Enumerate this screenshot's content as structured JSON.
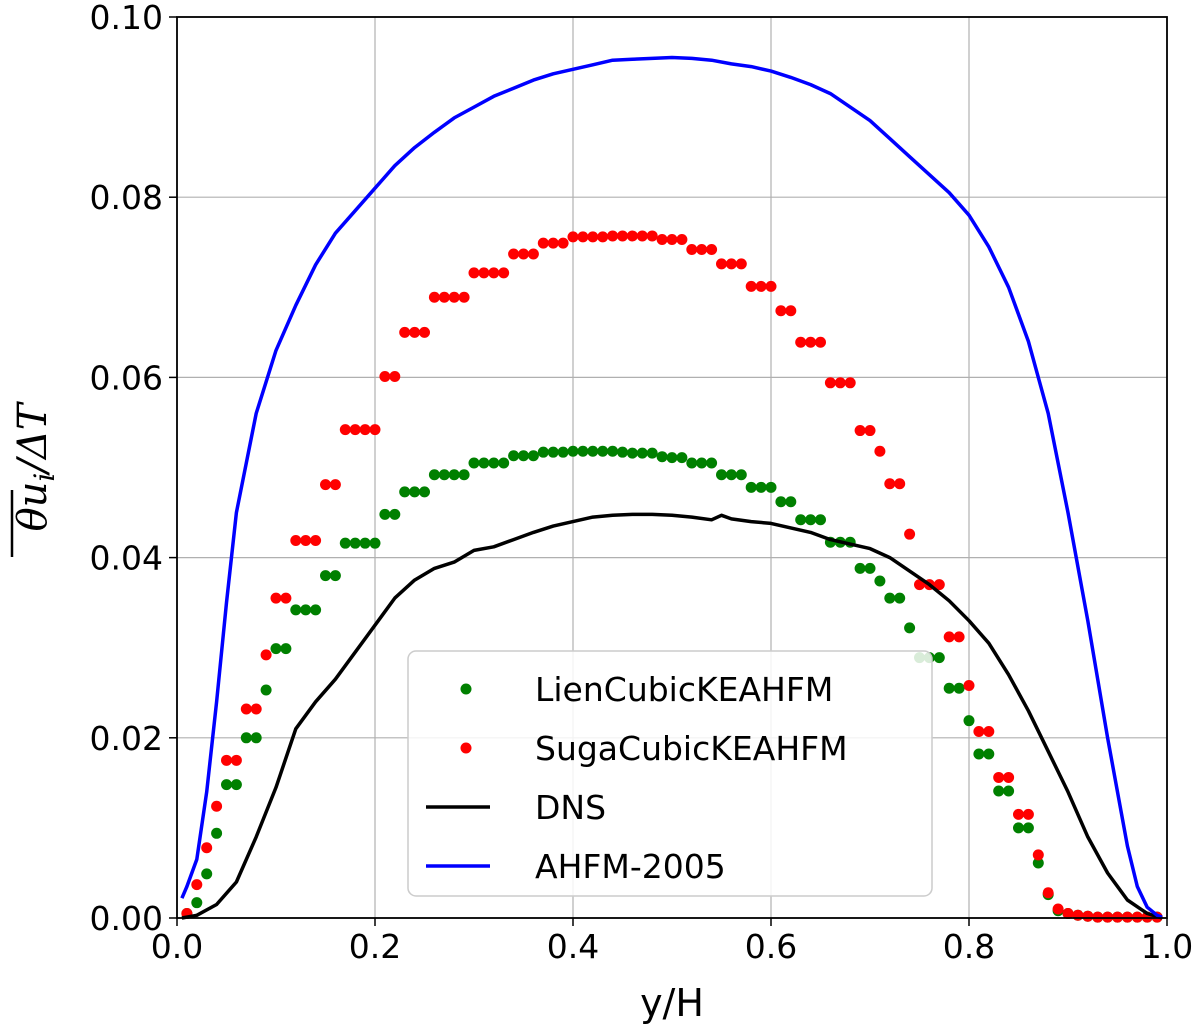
{
  "chart_data": {
    "type": "line",
    "xlabel": "y/H",
    "ylabel": "θu_i/ΔT",
    "ylabel_parts": {
      "main": "θu",
      "sub": "i",
      "tail": "/ΔT"
    },
    "xlim": [
      0.0,
      1.0
    ],
    "ylim": [
      0.0,
      0.1
    ],
    "x_ticks": [
      "0.0",
      "0.2",
      "0.4",
      "0.6",
      "0.8",
      "1.0"
    ],
    "y_ticks": [
      "0.00",
      "0.02",
      "0.04",
      "0.06",
      "0.08",
      "0.10"
    ],
    "grid": true,
    "legend_position": "lower center",
    "series": [
      {
        "name": "LienCubicKEAHFM",
        "style": "scatter",
        "color": "#008000",
        "x": [
          0.01,
          0.02,
          0.03,
          0.04,
          0.05,
          0.06,
          0.07,
          0.08,
          0.09,
          0.1,
          0.11,
          0.12,
          0.13,
          0.14,
          0.15,
          0.16,
          0.17,
          0.18,
          0.19,
          0.2,
          0.21,
          0.22,
          0.23,
          0.24,
          0.25,
          0.26,
          0.27,
          0.28,
          0.29,
          0.3,
          0.31,
          0.32,
          0.33,
          0.34,
          0.35,
          0.36,
          0.37,
          0.38,
          0.39,
          0.4,
          0.41,
          0.42,
          0.43,
          0.44,
          0.45,
          0.46,
          0.47,
          0.48,
          0.49,
          0.5,
          0.51,
          0.52,
          0.53,
          0.54,
          0.55,
          0.56,
          0.57,
          0.58,
          0.59,
          0.6,
          0.61,
          0.62,
          0.63,
          0.64,
          0.65,
          0.66,
          0.67,
          0.68,
          0.69,
          0.7,
          0.71,
          0.72,
          0.73,
          0.74,
          0.75,
          0.76,
          0.77,
          0.78,
          0.79,
          0.8,
          0.81,
          0.82,
          0.83,
          0.84,
          0.85,
          0.86,
          0.87,
          0.88,
          0.89,
          0.9,
          0.91,
          0.92,
          0.93,
          0.94,
          0.95,
          0.96,
          0.97,
          0.98,
          0.99
        ],
        "y": [
          0.0005,
          0.0017,
          0.0049,
          0.0094,
          0.0148,
          0.0148,
          0.02,
          0.02,
          0.0253,
          0.0299,
          0.0299,
          0.0342,
          0.0342,
          0.0342,
          0.038,
          0.038,
          0.0416,
          0.0416,
          0.0416,
          0.0416,
          0.0448,
          0.0448,
          0.0473,
          0.0473,
          0.0473,
          0.0492,
          0.0492,
          0.0492,
          0.0492,
          0.0505,
          0.0505,
          0.0505,
          0.0505,
          0.0513,
          0.0513,
          0.0513,
          0.0517,
          0.0517,
          0.0517,
          0.0518,
          0.0518,
          0.0518,
          0.0518,
          0.0518,
          0.0517,
          0.0516,
          0.0516,
          0.0516,
          0.0512,
          0.0511,
          0.0511,
          0.0505,
          0.0505,
          0.0505,
          0.0492,
          0.0492,
          0.0492,
          0.0478,
          0.0478,
          0.0478,
          0.0462,
          0.0462,
          0.0442,
          0.0442,
          0.0442,
          0.0417,
          0.0417,
          0.0417,
          0.0388,
          0.0388,
          0.0374,
          0.0355,
          0.0355,
          0.0322,
          0.0289,
          0.0289,
          0.0289,
          0.0255,
          0.0255,
          0.0219,
          0.0182,
          0.0182,
          0.0141,
          0.0141,
          0.01,
          0.01,
          0.0061,
          0.0026,
          0.0008,
          0.0005,
          0.0003,
          0.0002,
          0.0001,
          0.0001,
          0.0001,
          0.0001,
          0.0001,
          0.0001,
          0.0001
        ]
      },
      {
        "name": "SugaCubicKEAHFM",
        "style": "scatter",
        "color": "#ff0000",
        "x": [
          0.01,
          0.02,
          0.03,
          0.04,
          0.05,
          0.06,
          0.07,
          0.08,
          0.09,
          0.1,
          0.11,
          0.12,
          0.13,
          0.14,
          0.15,
          0.16,
          0.17,
          0.18,
          0.19,
          0.2,
          0.21,
          0.22,
          0.23,
          0.24,
          0.25,
          0.26,
          0.27,
          0.28,
          0.29,
          0.3,
          0.31,
          0.32,
          0.33,
          0.34,
          0.35,
          0.36,
          0.37,
          0.38,
          0.39,
          0.4,
          0.41,
          0.42,
          0.43,
          0.44,
          0.45,
          0.46,
          0.47,
          0.48,
          0.49,
          0.5,
          0.51,
          0.52,
          0.53,
          0.54,
          0.55,
          0.56,
          0.57,
          0.58,
          0.59,
          0.6,
          0.61,
          0.62,
          0.63,
          0.64,
          0.65,
          0.66,
          0.67,
          0.68,
          0.69,
          0.7,
          0.71,
          0.72,
          0.73,
          0.74,
          0.75,
          0.76,
          0.77,
          0.78,
          0.79,
          0.8,
          0.81,
          0.82,
          0.83,
          0.84,
          0.85,
          0.86,
          0.87,
          0.88,
          0.89,
          0.9,
          0.91,
          0.92,
          0.93,
          0.94,
          0.95,
          0.96,
          0.97,
          0.98,
          0.99
        ],
        "y": [
          0.0005,
          0.0037,
          0.0078,
          0.0124,
          0.0175,
          0.0175,
          0.0232,
          0.0232,
          0.0292,
          0.0355,
          0.0355,
          0.0419,
          0.0419,
          0.0419,
          0.0481,
          0.0481,
          0.0542,
          0.0542,
          0.0542,
          0.0542,
          0.0601,
          0.0601,
          0.065,
          0.065,
          0.065,
          0.0689,
          0.0689,
          0.0689,
          0.0689,
          0.0716,
          0.0716,
          0.0716,
          0.0716,
          0.0737,
          0.0737,
          0.0737,
          0.0749,
          0.0749,
          0.0749,
          0.0756,
          0.0756,
          0.0756,
          0.0756,
          0.0757,
          0.0757,
          0.0757,
          0.0757,
          0.0757,
          0.0753,
          0.0753,
          0.0753,
          0.0742,
          0.0742,
          0.0742,
          0.0726,
          0.0726,
          0.0726,
          0.0701,
          0.0701,
          0.0701,
          0.0674,
          0.0674,
          0.0639,
          0.0639,
          0.0639,
          0.0594,
          0.0594,
          0.0594,
          0.0541,
          0.0541,
          0.0518,
          0.0482,
          0.0482,
          0.0426,
          0.037,
          0.037,
          0.037,
          0.0312,
          0.0312,
          0.0258,
          0.0207,
          0.0207,
          0.0156,
          0.0156,
          0.0115,
          0.0115,
          0.007,
          0.0028,
          0.001,
          0.0005,
          0.0003,
          0.0002,
          0.0001,
          0.0001,
          0.0001,
          0.0001,
          0.0001,
          0.0001,
          0.0001
        ]
      },
      {
        "name": "DNS",
        "style": "line",
        "color": "#000000",
        "x": [
          0.005,
          0.02,
          0.04,
          0.06,
          0.08,
          0.1,
          0.12,
          0.14,
          0.16,
          0.18,
          0.2,
          0.22,
          0.24,
          0.26,
          0.28,
          0.3,
          0.32,
          0.34,
          0.36,
          0.38,
          0.4,
          0.42,
          0.44,
          0.46,
          0.48,
          0.5,
          0.52,
          0.54,
          0.55,
          0.56,
          0.58,
          0.6,
          0.62,
          0.64,
          0.66,
          0.68,
          0.7,
          0.72,
          0.74,
          0.76,
          0.78,
          0.8,
          0.82,
          0.84,
          0.86,
          0.88,
          0.9,
          0.92,
          0.94,
          0.96,
          0.98,
          0.995
        ],
        "y": [
          0.0,
          0.0003,
          0.0015,
          0.004,
          0.009,
          0.0145,
          0.021,
          0.024,
          0.0265,
          0.0295,
          0.0325,
          0.0355,
          0.0375,
          0.0388,
          0.0395,
          0.0408,
          0.0412,
          0.042,
          0.0428,
          0.0435,
          0.044,
          0.0445,
          0.0447,
          0.0448,
          0.0448,
          0.0447,
          0.0445,
          0.0442,
          0.0447,
          0.0443,
          0.044,
          0.0438,
          0.0433,
          0.0428,
          0.042,
          0.0415,
          0.041,
          0.04,
          0.0385,
          0.037,
          0.0352,
          0.033,
          0.0305,
          0.027,
          0.023,
          0.0185,
          0.014,
          0.009,
          0.005,
          0.002,
          0.0005,
          0.0
        ]
      },
      {
        "name": "AHFM-2005",
        "style": "line",
        "color": "#0000ff",
        "x": [
          0.005,
          0.01,
          0.02,
          0.03,
          0.04,
          0.05,
          0.06,
          0.08,
          0.1,
          0.12,
          0.14,
          0.16,
          0.18,
          0.2,
          0.22,
          0.24,
          0.26,
          0.28,
          0.3,
          0.32,
          0.34,
          0.36,
          0.38,
          0.4,
          0.42,
          0.44,
          0.46,
          0.48,
          0.5,
          0.52,
          0.54,
          0.56,
          0.58,
          0.6,
          0.62,
          0.64,
          0.66,
          0.68,
          0.7,
          0.72,
          0.74,
          0.76,
          0.78,
          0.8,
          0.82,
          0.84,
          0.86,
          0.88,
          0.9,
          0.92,
          0.94,
          0.95,
          0.96,
          0.97,
          0.98,
          0.99,
          0.995
        ],
        "y": [
          0.0022,
          0.0035,
          0.0065,
          0.014,
          0.024,
          0.035,
          0.045,
          0.056,
          0.063,
          0.068,
          0.0725,
          0.076,
          0.0785,
          0.081,
          0.0835,
          0.0855,
          0.0872,
          0.0888,
          0.09,
          0.0912,
          0.0921,
          0.093,
          0.0937,
          0.0942,
          0.0947,
          0.0952,
          0.0953,
          0.0954,
          0.0955,
          0.0954,
          0.0952,
          0.0948,
          0.0945,
          0.094,
          0.0933,
          0.0925,
          0.0915,
          0.09,
          0.0885,
          0.0865,
          0.0845,
          0.0825,
          0.0805,
          0.078,
          0.0745,
          0.07,
          0.064,
          0.056,
          0.045,
          0.033,
          0.02,
          0.014,
          0.008,
          0.0035,
          0.0012,
          0.0003,
          0.0001
        ]
      }
    ]
  }
}
